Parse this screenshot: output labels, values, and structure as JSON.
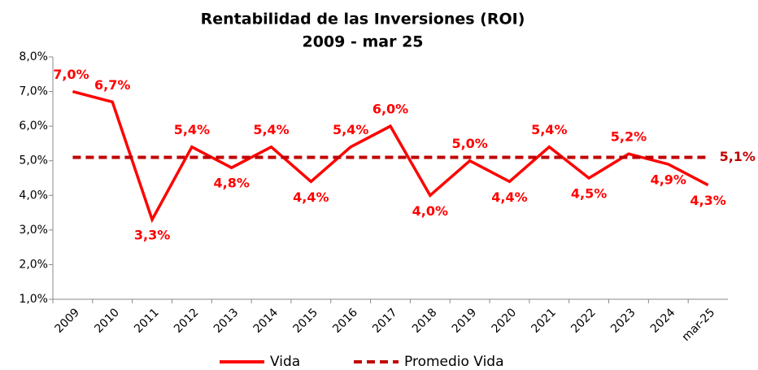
{
  "chart_data": {
    "type": "line",
    "title": "Rentabilidad de las Inversiones (ROI)",
    "subtitle": "2009 - mar 25",
    "categories": [
      "2009",
      "2010",
      "2011",
      "2012",
      "2013",
      "2014",
      "2015",
      "2016",
      "2017",
      "2018",
      "2019",
      "2020",
      "2021",
      "2022",
      "2023",
      "2024",
      "mar-25"
    ],
    "series": [
      {
        "name": "Vida",
        "color": "#ff0000",
        "style": "solid",
        "values": [
          7.0,
          6.7,
          3.3,
          5.4,
          4.8,
          5.4,
          4.4,
          5.4,
          6.0,
          4.0,
          5.0,
          4.4,
          5.4,
          4.5,
          5.2,
          4.9,
          4.3
        ],
        "value_labels": [
          "7,0%",
          "6,7%",
          "3,3%",
          "5,4%",
          "4,8%",
          "5,4%",
          "4,4%",
          "5,4%",
          "6,0%",
          "4,0%",
          "5,0%",
          "4,4%",
          "5,4%",
          "4,5%",
          "5,2%",
          "4,9%",
          "4,3%"
        ]
      },
      {
        "name": "Promedio Vida",
        "color": "#c00000",
        "style": "dashed",
        "values": [
          5.1,
          5.1,
          5.1,
          5.1,
          5.1,
          5.1,
          5.1,
          5.1,
          5.1,
          5.1,
          5.1,
          5.1,
          5.1,
          5.1,
          5.1,
          5.1,
          5.1
        ],
        "value_labels": [
          null,
          null,
          null,
          null,
          null,
          null,
          null,
          null,
          null,
          null,
          null,
          null,
          null,
          null,
          null,
          null,
          "5,1%"
        ]
      }
    ],
    "ylim": [
      1,
      8
    ],
    "yticks": [
      {
        "value": 1,
        "label": "1,0%"
      },
      {
        "value": 2,
        "label": "2,0%"
      },
      {
        "value": 3,
        "label": "3,0%"
      },
      {
        "value": 4,
        "label": "4,0%"
      },
      {
        "value": 5,
        "label": "5,0%"
      },
      {
        "value": 6,
        "label": "6,0%"
      },
      {
        "value": 7,
        "label": "7,0%"
      },
      {
        "value": 8,
        "label": "8,0%"
      }
    ],
    "grid": false,
    "legend": "bottom"
  }
}
